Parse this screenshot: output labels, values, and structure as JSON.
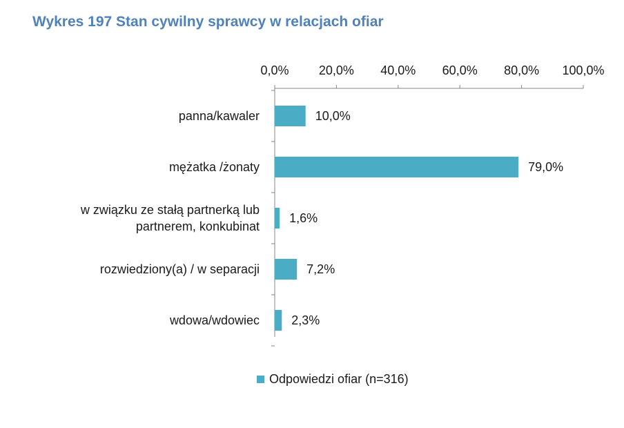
{
  "colors": {
    "bar": "#4bacc6",
    "title": "#4f81bd",
    "axis": "#868686"
  },
  "chart_data": {
    "type": "bar",
    "orientation": "horizontal",
    "title": "Wykres 197 Stan cywilny sprawcy w relacjach ofiar",
    "categories": [
      [
        "panna/kawaler"
      ],
      [
        "mężatka /żonaty"
      ],
      [
        "w związku ze stałą partnerką lub",
        "partnerem, konkubinat"
      ],
      [
        "rozwiedziony(a) / w separacji"
      ],
      [
        "wdowa/wdowiec"
      ]
    ],
    "series": [
      {
        "name": "Odpowiedzi ofiar (n=316)",
        "values": [
          10.0,
          79.0,
          1.6,
          7.2,
          2.3
        ],
        "labels": [
          "10,0%",
          "79,0%",
          "1,6%",
          "7,2%",
          "2,3%"
        ]
      }
    ],
    "xlim": [
      0,
      100
    ],
    "xticks": [
      0,
      20,
      40,
      60,
      80,
      100
    ],
    "xtick_labels": [
      "0,0%",
      "20,0%",
      "40,0%",
      "60,0%",
      "80,0%",
      "100,0%"
    ],
    "axis_position": "top",
    "grid": false,
    "legend_position": "bottom"
  }
}
